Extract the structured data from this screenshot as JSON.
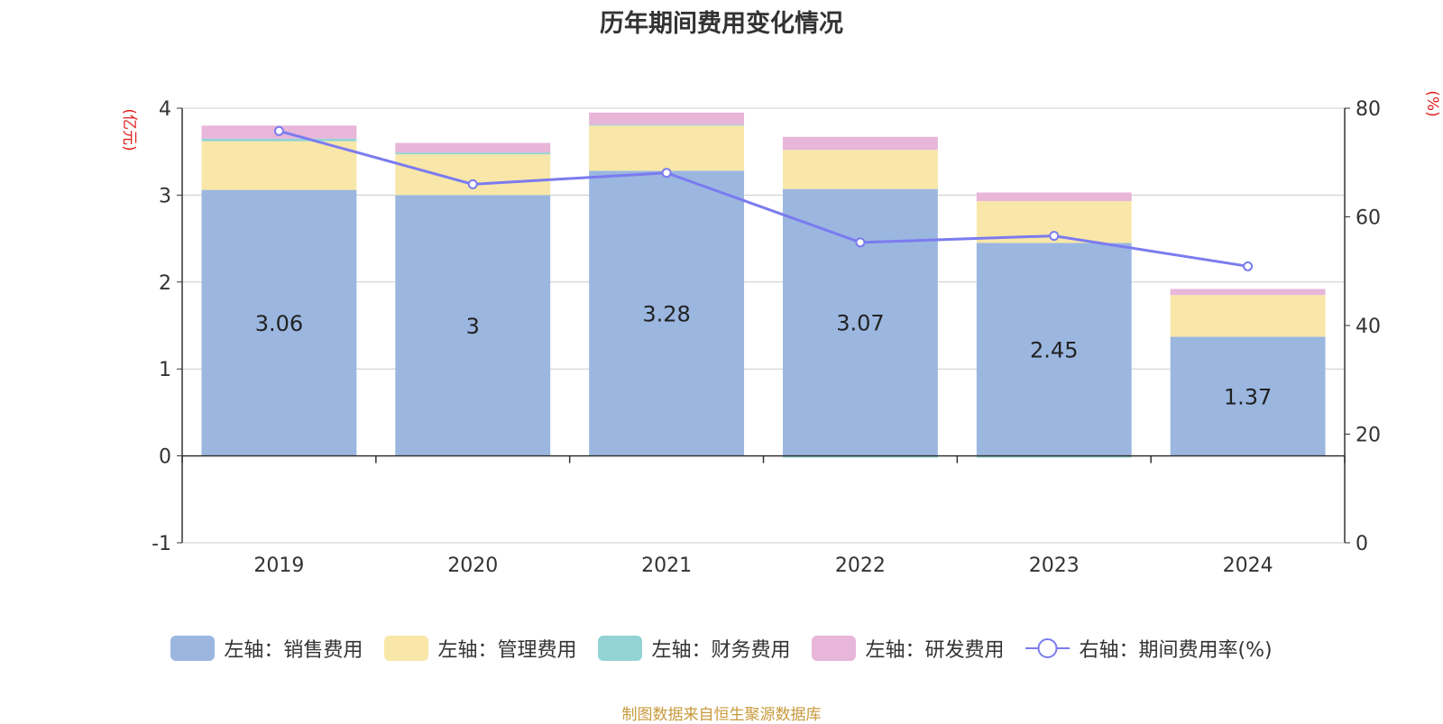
{
  "colors": {
    "sales": "#9bb7e0",
    "admin": "#f8e7a8",
    "finance": "#93d3d3",
    "rd": "#e7b6d9",
    "rate_line": "#7b7bf0",
    "axis_title": "#e02020",
    "source_text": "#c89a3c"
  },
  "chart_data": {
    "type": "bar",
    "title": "历年期间费用变化情况",
    "categories": [
      "2019",
      "2020",
      "2021",
      "2022",
      "2023",
      "2024"
    ],
    "left_axis": {
      "label": "(亿元)",
      "min": -1,
      "max": 4,
      "ticks": [
        "-1",
        "0",
        "1",
        "2",
        "3",
        "4"
      ]
    },
    "right_axis": {
      "label": "(%)",
      "min": 0,
      "max": 80,
      "ticks": [
        "0",
        "20",
        "40",
        "60",
        "80"
      ]
    },
    "series": [
      {
        "name": "左轴：销售费用",
        "key": "sales",
        "axis": "left",
        "type": "bar",
        "values": [
          3.06,
          3,
          3.28,
          3.07,
          2.45,
          1.37
        ],
        "data_labels": [
          "3.06",
          "3",
          "3.28",
          "3.07",
          "2.45",
          "1.37"
        ]
      },
      {
        "name": "左轴：管理费用",
        "key": "admin",
        "axis": "left",
        "type": "bar",
        "values": [
          0.56,
          0.47,
          0.52,
          0.45,
          0.48,
          0.48
        ]
      },
      {
        "name": "左轴：财务费用",
        "key": "finance",
        "axis": "left",
        "type": "bar",
        "values": [
          0.03,
          0.02,
          0.01,
          -0.02,
          -0.02,
          0.0
        ]
      },
      {
        "name": "左轴：研发费用",
        "key": "rd",
        "axis": "left",
        "type": "bar",
        "values": [
          0.15,
          0.11,
          0.14,
          0.15,
          0.1,
          0.07
        ]
      },
      {
        "name": "右轴：期间费用率(%)",
        "key": "rate_line",
        "axis": "right",
        "type": "line",
        "values": [
          75.8,
          66.0,
          68.1,
          55.3,
          56.5,
          50.9
        ]
      }
    ],
    "grid": true,
    "legend_position": "bottom"
  },
  "source": "制图数据来自恒生聚源数据库"
}
